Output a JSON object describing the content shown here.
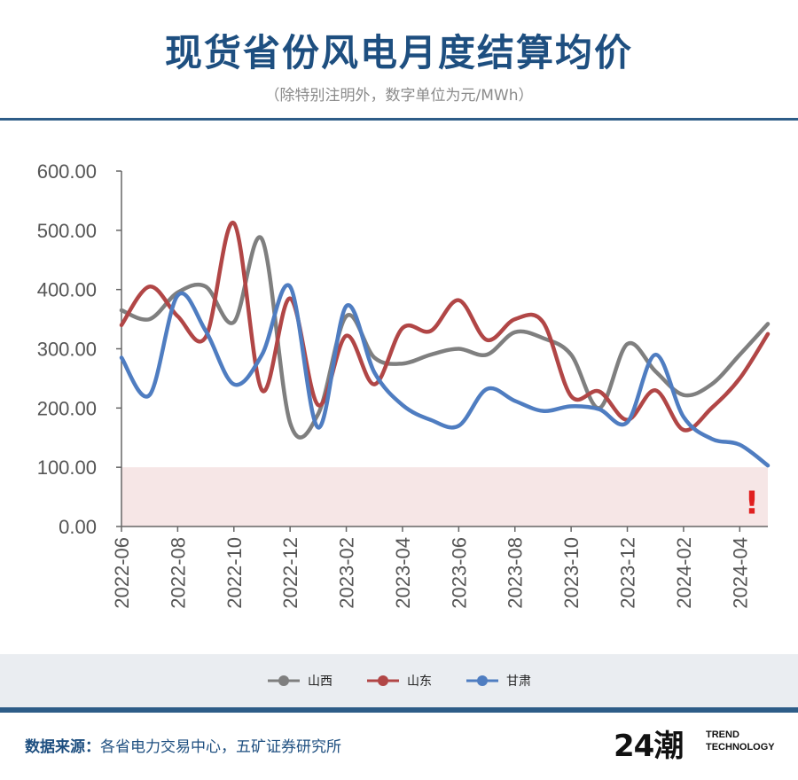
{
  "header": {
    "title": "现货省份风电月度结算均价",
    "subtitle": "（除特别注明外，数字单位为元/MWh）"
  },
  "footer": {
    "source_label": "数据来源：",
    "source_text": "各省电力交易中心，五矿证券研究所",
    "logo_mark": "24潮",
    "logo_line1": "TREND",
    "logo_line2": "TECHNOLOGY"
  },
  "colors": {
    "shanxi": "#7f7f7f",
    "shandong": "#b14646",
    "gansu": "#4f7dc1",
    "band": "#f6e6e6",
    "warning": "#e02020"
  },
  "chart_data": {
    "type": "line",
    "title": "现货省份风电月度结算均价",
    "ylim": [
      0,
      600
    ],
    "yticks": [
      "0.00",
      "100.00",
      "200.00",
      "300.00",
      "400.00",
      "500.00",
      "600.00"
    ],
    "xtick_labels": [
      "2022-06",
      "2022-08",
      "2022-10",
      "2022-12",
      "2023-02",
      "2023-04",
      "2023-06",
      "2023-08",
      "2023-10",
      "2023-12",
      "2024-02",
      "2024-04"
    ],
    "categories": [
      "2022-06",
      "2022-07",
      "2022-08",
      "2022-09",
      "2022-10",
      "2022-11",
      "2022-12",
      "2023-01",
      "2023-02",
      "2023-03",
      "2023-04",
      "2023-05",
      "2023-06",
      "2023-07",
      "2023-08",
      "2023-09",
      "2023-10",
      "2023-11",
      "2023-12",
      "2024-01",
      "2024-02",
      "2024-03",
      "2024-04",
      "2024-05"
    ],
    "series": [
      {
        "name": "山西",
        "values": [
          365,
          350,
          395,
          405,
          345,
          485,
          175,
          190,
          355,
          285,
          275,
          290,
          300,
          290,
          328,
          318,
          290,
          200,
          308,
          262,
          222,
          240,
          290,
          342
        ]
      },
      {
        "name": "山东",
        "values": [
          340,
          405,
          355,
          320,
          512,
          230,
          385,
          205,
          322,
          240,
          335,
          330,
          382,
          315,
          350,
          345,
          220,
          228,
          180,
          230,
          163,
          200,
          250,
          325
        ]
      },
      {
        "name": "甘肃",
        "values": [
          285,
          222,
          390,
          330,
          240,
          290,
          405,
          167,
          372,
          260,
          205,
          180,
          170,
          232,
          212,
          195,
          203,
          198,
          176,
          290,
          185,
          148,
          138,
          103
        ]
      }
    ],
    "shaded_band": [
      0,
      100
    ],
    "annotation": "!",
    "legend": "bottom",
    "grid": false
  }
}
